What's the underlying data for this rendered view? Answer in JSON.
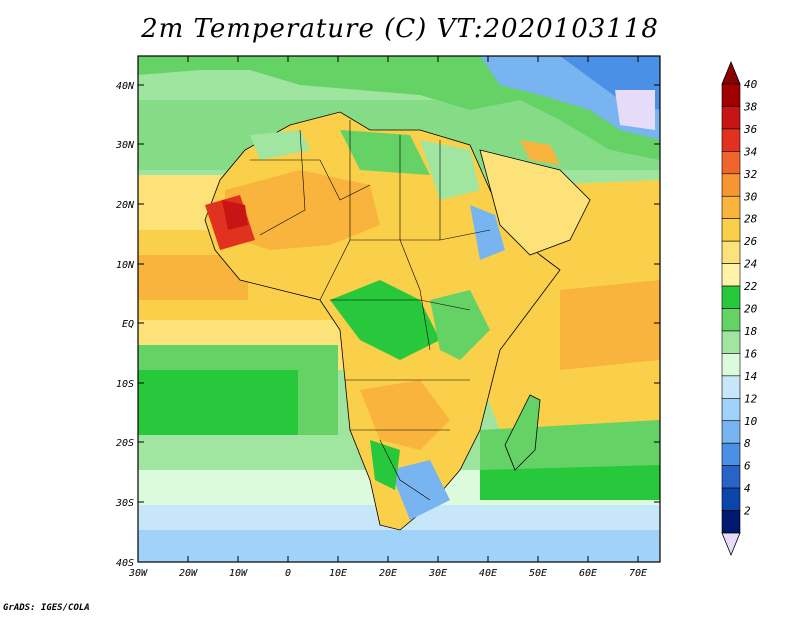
{
  "title": "2m Temperature (C) VT:2020103118",
  "credit": "GrADS: IGES/COLA",
  "map": {
    "variable": "2m Temperature",
    "units": "C",
    "region": "Africa",
    "lon_range": [
      -30,
      75
    ],
    "lat_range": [
      -40,
      45
    ],
    "lat_labels": [
      "40N",
      "30N",
      "20N",
      "10N",
      "EQ",
      "10S",
      "20S",
      "30S",
      "40S"
    ],
    "lon_labels": [
      "30W",
      "20W",
      "10W",
      "0",
      "10E",
      "20E",
      "30E",
      "40E",
      "50E",
      "60E",
      "70E"
    ]
  },
  "colorbar": {
    "labels": [
      "40",
      "38",
      "36",
      "34",
      "32",
      "30",
      "28",
      "26",
      "24",
      "22",
      "20",
      "18",
      "16",
      "14",
      "12",
      "10",
      "8",
      "6",
      "4",
      "2"
    ],
    "colors": [
      "#a00000",
      "#c81414",
      "#e0321e",
      "#f0642d",
      "#f59632",
      "#f8b43c",
      "#fad04b",
      "#fde27a",
      "#fff3a8",
      "#28c83c",
      "#64d264",
      "#a0e6a0",
      "#dcfadc",
      "#c8e6fa",
      "#a0d2fa",
      "#78b4f0",
      "#4a90e6",
      "#2864c8",
      "#0a46aa",
      "#00186e"
    ],
    "top_arrow_color": "#8b0000",
    "bottom_arrow_color": "#e6dcfa"
  }
}
